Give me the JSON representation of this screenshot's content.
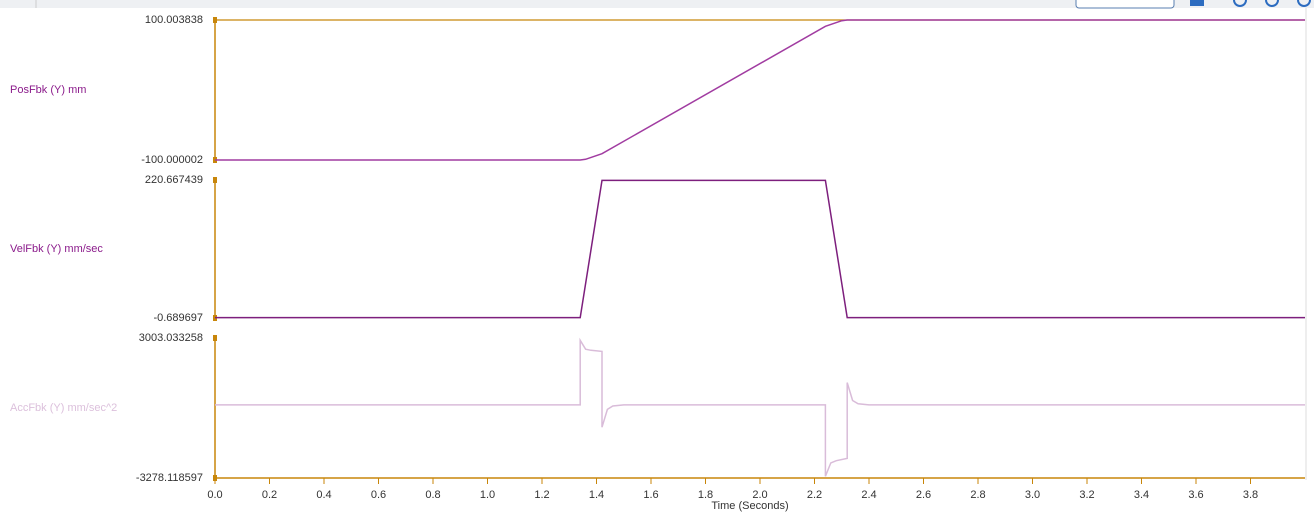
{
  "chart_data": [
    {
      "type": "line",
      "ylabel": "PosFbk (Y) mm",
      "color": "#a13ca1",
      "label_color": "#8b1b8b",
      "x": [
        0,
        1.34,
        1.36,
        1.42,
        2.24,
        2.3,
        2.32,
        2.36,
        4
      ],
      "values": [
        -100,
        -100,
        -99,
        -91,
        91,
        99,
        100,
        100,
        100
      ],
      "xlim": [
        0,
        4
      ],
      "ylim": [
        -100.000002,
        100.003838
      ],
      "yticks": [
        -100.000002,
        100.003838
      ]
    },
    {
      "type": "line",
      "ylabel": "VelFbk (Y) mm/sec",
      "color": "#7d1f7d",
      "label_color": "#8b1b8b",
      "x": [
        0,
        1.34,
        1.42,
        2.24,
        2.32,
        4
      ],
      "values": [
        0,
        0,
        220,
        220,
        0,
        0
      ],
      "xlim": [
        0,
        4
      ],
      "ylim": [
        -0.689697,
        220.667439
      ],
      "yticks": [
        -0.689697,
        220.667439
      ]
    },
    {
      "type": "line",
      "ylabel": "AccFbk (Y) mm/sec^2",
      "color": "#d9bcd9",
      "label_color": "#dcc0dc",
      "x": [
        0,
        1.34,
        1.34,
        1.36,
        1.38,
        1.42,
        1.42,
        1.44,
        1.46,
        1.5,
        2.24,
        2.24,
        2.26,
        2.28,
        2.32,
        2.32,
        2.34,
        2.36,
        2.4,
        4
      ],
      "values": [
        0,
        0,
        2900,
        2500,
        2450,
        2400,
        -1000,
        -200,
        -50,
        0,
        0,
        -3200,
        -2600,
        -2500,
        -2400,
        1000,
        200,
        50,
        0,
        0
      ],
      "xlim": [
        0,
        4
      ],
      "ylim": [
        -3278.118597,
        3003.033258
      ],
      "yticks": [
        -3278.118597,
        3003.033258
      ],
      "xlabel": "Time (Seconds)",
      "xticks": [
        {
          "value": 0,
          "label": "0.0"
        },
        0.2,
        0.4,
        0.6,
        0.8,
        {
          "value": 1,
          "label": "1.0"
        },
        1.2,
        1.4,
        1.6,
        1.8,
        {
          "value": 2,
          "label": "2.0"
        },
        2.2,
        2.4,
        2.6,
        2.8,
        {
          "value": 3,
          "label": "3.0"
        },
        3.2,
        3.4,
        3.6,
        3.8
      ]
    }
  ]
}
